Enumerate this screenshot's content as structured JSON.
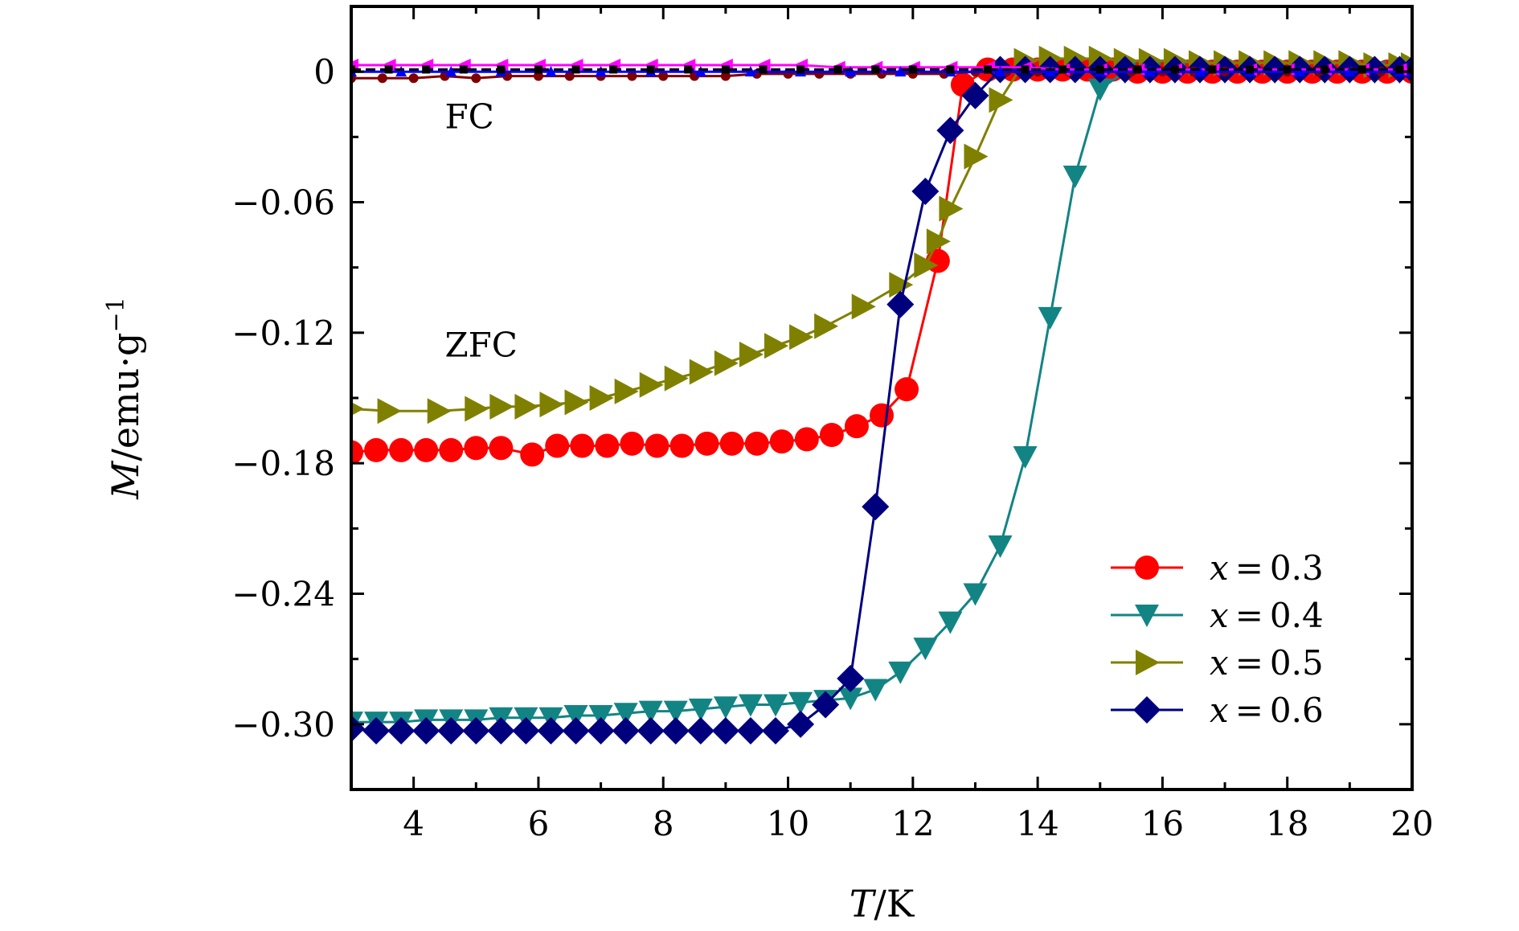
{
  "chart_data": {
    "type": "line",
    "title": "",
    "xlabel": {
      "var": "T",
      "unit": "K"
    },
    "ylabel": {
      "var": "M",
      "unit": "emu·g",
      "exp": "−1"
    },
    "xlim": [
      3,
      20
    ],
    "ylim": [
      -0.33,
      0.03
    ],
    "xticks": [
      4,
      6,
      8,
      10,
      12,
      14,
      16,
      18,
      20
    ],
    "xtick_labels": [
      "4",
      "6",
      "8",
      "10",
      "12",
      "14",
      "16",
      "18",
      "20"
    ],
    "yticks": [
      0,
      -0.06,
      -0.12,
      -0.18,
      -0.24,
      -0.3
    ],
    "ytick_labels": [
      "0",
      "−0.06",
      "−0.12",
      "−0.18",
      "−0.24",
      "−0.30"
    ],
    "grid": false,
    "legend_position": "bottom-right",
    "annotations": [
      {
        "text": "FC",
        "x": 4.5,
        "y": -0.026
      },
      {
        "text": "ZFC",
        "x": 4.5,
        "y": -0.131
      }
    ],
    "series": [
      {
        "name": "x = 0.3",
        "label_var": "x",
        "label_val": "0.3",
        "color": "#ff0000",
        "marker": "circle",
        "x": [
          3.0,
          3.4,
          3.8,
          4.2,
          4.6,
          5.0,
          5.4,
          5.9,
          6.3,
          6.7,
          7.1,
          7.5,
          7.9,
          8.3,
          8.7,
          9.1,
          9.5,
          9.9,
          10.3,
          10.7,
          11.1,
          11.5,
          11.9,
          12.4,
          12.8,
          13.2,
          13.6,
          14.0,
          14.4,
          14.8,
          15.2,
          15.6,
          16.0,
          16.4,
          16.8,
          17.2,
          17.6,
          18.0,
          18.4,
          18.8,
          19.2,
          19.6,
          20.0
        ],
        "y": [
          -0.175,
          -0.174,
          -0.174,
          -0.174,
          -0.174,
          -0.173,
          -0.173,
          -0.176,
          -0.172,
          -0.172,
          -0.172,
          -0.171,
          -0.172,
          -0.172,
          -0.171,
          -0.171,
          -0.171,
          -0.17,
          -0.169,
          -0.167,
          -0.163,
          -0.158,
          -0.146,
          -0.087,
          -0.006,
          0.001,
          0.001,
          0.001,
          0.001,
          0.001,
          0.001,
          0.0,
          0.0,
          0.0,
          0.0,
          0.0,
          0.0,
          0.0,
          0.0,
          0.0,
          0.0,
          0.0,
          0.0
        ]
      },
      {
        "name": "x = 0.4",
        "label_var": "x",
        "label_val": "0.4",
        "color": "#138484",
        "marker": "triangle-down",
        "x": [
          3.0,
          3.4,
          3.8,
          4.2,
          4.6,
          5.0,
          5.4,
          5.8,
          6.2,
          6.6,
          7.0,
          7.4,
          7.8,
          8.2,
          8.6,
          9.0,
          9.4,
          9.8,
          10.2,
          10.6,
          11.0,
          11.4,
          11.8,
          12.2,
          12.6,
          13.0,
          13.4,
          13.8,
          14.2,
          14.6,
          15.0,
          15.4,
          15.8,
          16.2,
          16.6,
          17.0,
          17.4,
          17.8,
          18.2,
          18.6,
          19.0,
          19.4,
          19.8,
          20.0
        ],
        "y": [
          -0.299,
          -0.299,
          -0.299,
          -0.298,
          -0.298,
          -0.298,
          -0.297,
          -0.297,
          -0.297,
          -0.296,
          -0.296,
          -0.295,
          -0.294,
          -0.294,
          -0.293,
          -0.292,
          -0.291,
          -0.291,
          -0.29,
          -0.289,
          -0.288,
          -0.284,
          -0.276,
          -0.265,
          -0.253,
          -0.24,
          -0.218,
          -0.177,
          -0.113,
          -0.048,
          -0.008,
          0.0,
          0.0,
          0.0,
          0.0,
          0.0,
          0.0,
          0.0,
          0.0,
          0.0,
          0.0,
          0.0,
          0.0,
          0.0
        ]
      },
      {
        "name": "x = 0.5",
        "label_var": "x",
        "label_val": "0.5",
        "color": "#808000",
        "marker": "triangle-right",
        "x": [
          3.0,
          3.6,
          4.4,
          5.0,
          5.4,
          5.8,
          6.2,
          6.6,
          7.0,
          7.4,
          7.8,
          8.2,
          8.6,
          9.0,
          9.4,
          9.8,
          10.2,
          10.6,
          11.2,
          11.8,
          12.2,
          12.4,
          12.6,
          13.0,
          13.4,
          13.8,
          14.2,
          14.6,
          15.0,
          15.4,
          15.8,
          16.2,
          16.6,
          17.0,
          17.4,
          17.8,
          18.2,
          18.6,
          19.0,
          19.4,
          19.8,
          20.0
        ],
        "y": [
          -0.155,
          -0.156,
          -0.156,
          -0.155,
          -0.154,
          -0.154,
          -0.153,
          -0.152,
          -0.15,
          -0.147,
          -0.144,
          -0.141,
          -0.138,
          -0.134,
          -0.13,
          -0.126,
          -0.122,
          -0.117,
          -0.108,
          -0.098,
          -0.089,
          -0.078,
          -0.063,
          -0.039,
          -0.013,
          0.005,
          0.006,
          0.006,
          0.006,
          0.005,
          0.005,
          0.005,
          0.004,
          0.004,
          0.004,
          0.004,
          0.004,
          0.004,
          0.004,
          0.003,
          0.003,
          0.003
        ]
      },
      {
        "name": "x = 0.6",
        "label_var": "x",
        "label_val": "0.6",
        "color": "#00007f",
        "marker": "diamond",
        "x": [
          3.0,
          3.4,
          3.8,
          4.2,
          4.6,
          5.0,
          5.4,
          5.8,
          6.2,
          6.6,
          7.0,
          7.4,
          7.8,
          8.2,
          8.6,
          9.0,
          9.4,
          9.8,
          10.2,
          10.6,
          11.0,
          11.4,
          11.8,
          12.2,
          12.6,
          13.0,
          13.4,
          13.8,
          14.2,
          14.6,
          15.0,
          15.4,
          15.8,
          16.2,
          16.6,
          17.0,
          17.4,
          17.8,
          18.2,
          18.6,
          19.0,
          19.4,
          19.8,
          20.0
        ],
        "y": [
          -0.302,
          -0.303,
          -0.303,
          -0.303,
          -0.303,
          -0.303,
          -0.303,
          -0.303,
          -0.303,
          -0.303,
          -0.303,
          -0.303,
          -0.303,
          -0.303,
          -0.303,
          -0.303,
          -0.303,
          -0.303,
          -0.3,
          -0.291,
          -0.279,
          -0.2,
          -0.107,
          -0.055,
          -0.027,
          -0.011,
          0.001,
          0.001,
          0.001,
          0.001,
          0.001,
          0.001,
          0.001,
          0.001,
          0.001,
          0.001,
          0.001,
          0.001,
          0.001,
          0.001,
          0.001,
          0.001,
          0.001,
          0.001
        ]
      },
      {
        "name": "FC (x = 0.3)",
        "in_legend": false,
        "color": "#7f0000",
        "marker": "small-circle",
        "x": [
          3.0,
          3.5,
          4.0,
          4.5,
          5.0,
          5.5,
          6.0,
          6.5,
          7.0,
          7.5,
          8.0,
          8.5,
          9.0,
          9.5,
          10.0,
          10.5,
          11.0,
          11.5,
          12.0,
          12.5,
          13.0,
          13.5,
          14.0,
          14.5,
          15.0,
          15.5,
          16.0,
          16.5,
          17.0,
          17.5,
          18.0,
          18.5,
          19.0,
          19.5,
          20.0
        ],
        "y": [
          -0.003,
          -0.003,
          -0.003,
          -0.002,
          -0.003,
          -0.002,
          -0.002,
          -0.002,
          -0.002,
          -0.002,
          -0.002,
          -0.002,
          -0.002,
          -0.001,
          -0.001,
          -0.001,
          -0.001,
          -0.001,
          -0.001,
          -0.001,
          0.0,
          0.0,
          0.0,
          0.0,
          0.0,
          0.0,
          0.0,
          0.0,
          0.0,
          0.0,
          0.0,
          0.0,
          0.0,
          0.0,
          0.0
        ]
      },
      {
        "name": "FC (x = 0.5)",
        "in_legend": false,
        "color": "#ff00ff",
        "marker": "triangle-left",
        "x": [
          3.0,
          3.6,
          4.2,
          4.8,
          5.4,
          6.0,
          6.6,
          7.2,
          7.8,
          8.4,
          9.0,
          9.6,
          10.2,
          10.8,
          11.4,
          12.0,
          12.6,
          13.2,
          13.8,
          14.4,
          15.0,
          15.6,
          16.2,
          16.8,
          17.4,
          18.0,
          18.6,
          19.2,
          19.8,
          20.0
        ],
        "y": [
          0.003,
          0.003,
          0.003,
          0.003,
          0.003,
          0.003,
          0.003,
          0.003,
          0.003,
          0.003,
          0.003,
          0.003,
          0.003,
          0.002,
          0.002,
          0.002,
          0.002,
          0.002,
          0.002,
          0.001,
          0.001,
          0.001,
          0.001,
          0.001,
          0.001,
          0.001,
          0.001,
          0.001,
          0.001,
          0.001
        ]
      },
      {
        "name": "FC (x = 0.4)",
        "in_legend": false,
        "color": "#0000ff",
        "marker": "small-triangle-up",
        "x": [
          3.0,
          3.8,
          4.6,
          5.4,
          6.2,
          7.0,
          7.8,
          8.6,
          9.4,
          10.2,
          11.0,
          11.8,
          12.6,
          13.4,
          14.2,
          15.0,
          15.8,
          16.6,
          17.4,
          18.2,
          19.0,
          19.8,
          20.0
        ],
        "y": [
          0.0,
          0.0,
          0.0,
          0.0,
          0.0,
          0.0,
          0.0,
          0.0,
          0.0,
          0.0,
          0.0,
          0.0,
          0.0,
          0.0,
          0.0,
          0.0,
          0.0,
          0.0,
          0.0,
          0.0,
          0.0,
          0.0,
          0.0
        ]
      },
      {
        "name": "FC (x = 0.6)",
        "in_legend": false,
        "color": "#000000",
        "marker": "small-square",
        "dash": true,
        "x": [
          3.0,
          3.6,
          4.2,
          4.8,
          5.4,
          6.0,
          6.6,
          7.2,
          7.8,
          8.4,
          9.0,
          9.6,
          10.2,
          10.8,
          11.4,
          12.0,
          12.6,
          13.2,
          13.8,
          14.4,
          15.0,
          15.6,
          16.2,
          16.8,
          17.4,
          18.0,
          18.6,
          19.2,
          19.8,
          20.0
        ],
        "y": [
          0.001,
          0.001,
          0.001,
          0.001,
          0.001,
          0.001,
          0.001,
          0.001,
          0.001,
          0.001,
          0.001,
          0.001,
          0.001,
          0.001,
          0.001,
          0.001,
          0.001,
          0.001,
          0.001,
          0.001,
          0.001,
          0.001,
          0.001,
          0.001,
          0.001,
          0.001,
          0.001,
          0.001,
          0.001,
          0.001
        ]
      }
    ]
  }
}
